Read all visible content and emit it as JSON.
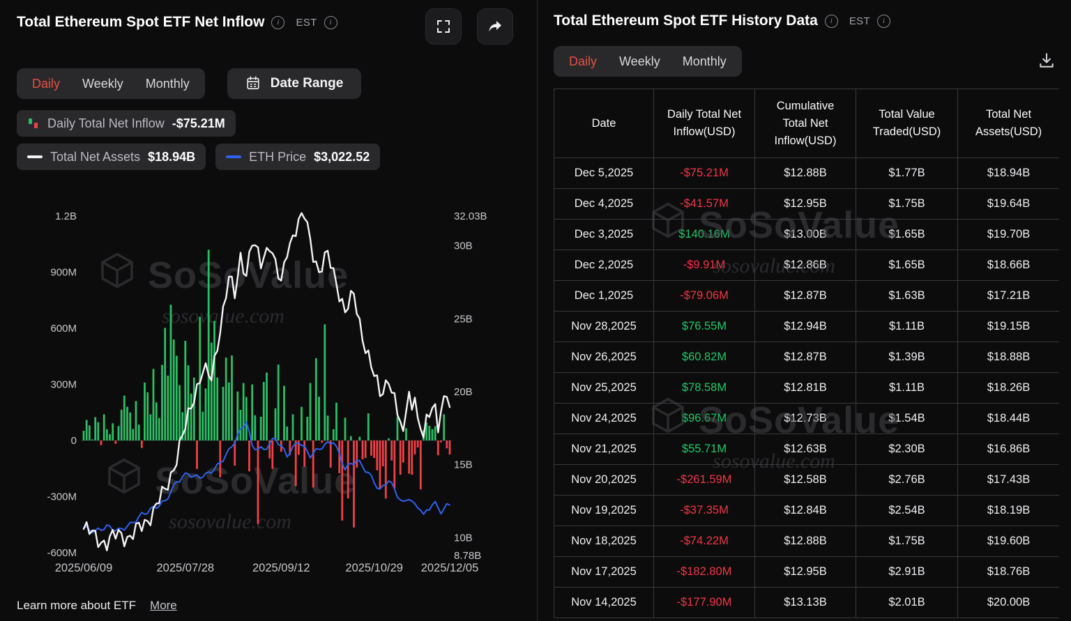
{
  "left_panel": {
    "title": "Total Ethereum Spot ETF Net Inflow",
    "est_label": "EST",
    "tabs": [
      {
        "label": "Daily",
        "active": true
      },
      {
        "label": "Weekly",
        "active": false
      },
      {
        "label": "Monthly",
        "active": false
      }
    ],
    "date_range_label": "Date Range",
    "legend": {
      "inflow_label": "Daily Total Net Inflow",
      "inflow_value": "-$75.21M",
      "assets_label": "Total Net Assets",
      "assets_value": "$18.94B",
      "price_label": "ETH Price",
      "price_value": "$3,022.52"
    },
    "footer": {
      "text": "Learn more about ETF",
      "more": "More"
    }
  },
  "right_panel": {
    "title": "Total Ethereum Spot ETF History Data",
    "est_label": "EST",
    "tabs": [
      {
        "label": "Daily",
        "active": true
      },
      {
        "label": "Weekly",
        "active": false
      },
      {
        "label": "Monthly",
        "active": false
      }
    ],
    "table": {
      "columns": [
        "Date",
        "Daily Total Net Inflow(USD)",
        "Cumulative Total Net Inflow(USD)",
        "Total Value Traded(USD)",
        "Total Net Assets(USD)"
      ],
      "rows": [
        {
          "date": "Dec 5,2025",
          "inflow": "-$75.21M",
          "cumulative": "$12.88B",
          "traded": "$1.77B",
          "assets": "$18.94B"
        },
        {
          "date": "Dec 4,2025",
          "inflow": "-$41.57M",
          "cumulative": "$12.95B",
          "traded": "$1.75B",
          "assets": "$19.64B"
        },
        {
          "date": "Dec 3,2025",
          "inflow": "$140.16M",
          "cumulative": "$13.00B",
          "traded": "$1.65B",
          "assets": "$19.70B"
        },
        {
          "date": "Dec 2,2025",
          "inflow": "-$9.91M",
          "cumulative": "$12.86B",
          "traded": "$1.65B",
          "assets": "$18.66B"
        },
        {
          "date": "Dec 1,2025",
          "inflow": "-$79.06M",
          "cumulative": "$12.87B",
          "traded": "$1.63B",
          "assets": "$17.21B"
        },
        {
          "date": "Nov 28,2025",
          "inflow": "$76.55M",
          "cumulative": "$12.94B",
          "traded": "$1.11B",
          "assets": "$19.15B"
        },
        {
          "date": "Nov 26,2025",
          "inflow": "$60.82M",
          "cumulative": "$12.87B",
          "traded": "$1.39B",
          "assets": "$18.88B"
        },
        {
          "date": "Nov 25,2025",
          "inflow": "$78.58M",
          "cumulative": "$12.81B",
          "traded": "$1.11B",
          "assets": "$18.26B"
        },
        {
          "date": "Nov 24,2025",
          "inflow": "$96.67M",
          "cumulative": "$12.73B",
          "traded": "$1.54B",
          "assets": "$18.44B"
        },
        {
          "date": "Nov 21,2025",
          "inflow": "$55.71M",
          "cumulative": "$12.63B",
          "traded": "$2.30B",
          "assets": "$16.86B"
        },
        {
          "date": "Nov 20,2025",
          "inflow": "-$261.59M",
          "cumulative": "$12.58B",
          "traded": "$2.76B",
          "assets": "$17.43B"
        },
        {
          "date": "Nov 19,2025",
          "inflow": "-$37.35M",
          "cumulative": "$12.84B",
          "traded": "$2.54B",
          "assets": "$18.19B"
        },
        {
          "date": "Nov 18,2025",
          "inflow": "-$74.22M",
          "cumulative": "$12.88B",
          "traded": "$1.75B",
          "assets": "$19.60B"
        },
        {
          "date": "Nov 17,2025",
          "inflow": "-$182.80M",
          "cumulative": "$12.95B",
          "traded": "$2.91B",
          "assets": "$18.76B"
        },
        {
          "date": "Nov 14,2025",
          "inflow": "-$177.90M",
          "cumulative": "$13.13B",
          "traded": "$2.01B",
          "assets": "$20.00B"
        }
      ]
    }
  },
  "watermark": {
    "brand": "SoSoValue",
    "domain": "sosovalue.com"
  },
  "icons": {
    "info_glyph": "i"
  },
  "colors": {
    "accent_tab_red": "#e5513f",
    "negative_red": "#f23645",
    "positive_green": "#1fc96a",
    "eth_blue": "#2f62f0",
    "assets_line": "#f4f4f5",
    "panel_chip": "#29292c",
    "background": "#0c0c0d"
  },
  "chart_data": {
    "type": "bar",
    "title": "Total Ethereum Spot ETF Net Inflow",
    "x_range": [
      "2025/06/09",
      "2025/12/05"
    ],
    "x_tick_labels": [
      "2025/06/09",
      "2025/07/28",
      "2025/09/12",
      "2025/10/29",
      "2025/12/05"
    ],
    "x_tick_index": [
      0,
      35,
      68,
      100,
      126
    ],
    "left_axis_ticks": [
      "1.2B",
      "900M",
      "600M",
      "300M",
      "0",
      "-300M",
      "-600M"
    ],
    "left_axis_tick_values_m": [
      1200,
      900,
      600,
      300,
      0,
      -300,
      -600
    ],
    "left_axis_range_m": [
      -600,
      1200
    ],
    "right_axis_ticks": [
      "32.03B",
      "30B",
      "25B",
      "20B",
      "15B",
      "10B",
      "8.78B"
    ],
    "right_axis_tick_values_b": [
      32.03,
      30,
      25,
      20,
      15,
      10,
      8.78
    ],
    "right_axis_range_b": [
      8.78,
      32.03
    ],
    "grid": false,
    "series": [
      {
        "name": "Daily Total Net Inflow (USD millions, estimated per trading day)",
        "type": "bar",
        "positive_color": "#2dbd64",
        "negative_color": "#ee4145",
        "values": [
          52,
          110,
          81,
          6,
          125,
          98,
          -25,
          140,
          60,
          34,
          92,
          -18,
          77,
          165,
          240,
          180,
          150,
          62,
          211,
          85,
          -40,
          310,
          258,
          140,
          383,
          204,
          120,
          404,
          602,
          347,
          726,
          540,
          453,
          296,
          151,
          533,
          402,
          250,
          336,
          -152,
          661,
          154,
          278,
          1020,
          523,
          639,
          337,
          -197,
          287,
          443,
          310,
          455,
          -135,
          262,
          164,
          307,
          233,
          -165,
          300,
          135,
          -446,
          127,
          313,
          363,
          -96,
          -152,
          172,
          406,
          -60,
          292,
          75,
          -79,
          140,
          -244,
          -76,
          180,
          -141,
          127,
          307,
          -251,
          440,
          234,
          -12,
          621,
          133,
          -145,
          60,
          202,
          -175,
          -428,
          122,
          -310,
          23,
          -465,
          -145,
          20,
          -101,
          -94,
          145,
          -81,
          -93,
          -159,
          -260,
          -138,
          -311,
          12,
          -107,
          -257,
          126,
          -183,
          -118,
          66,
          -177.9,
          -182.8,
          -74.22,
          -37.35,
          -261.59,
          55.71,
          96.67,
          78.58,
          60.82,
          76.55,
          -79.06,
          -9.91,
          140.16,
          -41.57,
          -75.21
        ]
      },
      {
        "name": "Total Net Assets (USD billions, anchors [index,value])",
        "type": "line",
        "axis": "right",
        "color": "#f4f4f5",
        "anchors": [
          [
            0,
            10.6
          ],
          [
            4,
            10.1
          ],
          [
            8,
            9.6
          ],
          [
            12,
            10.3
          ],
          [
            16,
            10.0
          ],
          [
            20,
            10.8
          ],
          [
            24,
            11.8
          ],
          [
            28,
            13.2
          ],
          [
            32,
            15.5
          ],
          [
            35,
            17.5
          ],
          [
            38,
            19.8
          ],
          [
            41,
            21.5
          ],
          [
            44,
            20.8
          ],
          [
            47,
            24.5
          ],
          [
            50,
            27.8
          ],
          [
            52,
            26.5
          ],
          [
            54,
            29.3
          ],
          [
            56,
            28.2
          ],
          [
            58,
            30.2
          ],
          [
            61,
            28.8
          ],
          [
            64,
            30.3
          ],
          [
            66,
            28.6
          ],
          [
            68,
            27.2
          ],
          [
            70,
            29.8
          ],
          [
            73,
            31.2
          ],
          [
            76,
            32.03
          ],
          [
            79,
            29.6
          ],
          [
            81,
            28.2
          ],
          [
            84,
            29.3
          ],
          [
            87,
            27.6
          ],
          [
            90,
            25.4
          ],
          [
            93,
            26.6
          ],
          [
            96,
            23.9
          ],
          [
            99,
            21.6
          ],
          [
            102,
            19.9
          ],
          [
            105,
            21.0
          ],
          [
            108,
            18.4
          ],
          [
            110,
            17.3
          ],
          [
            112,
            20.0
          ],
          [
            113,
            18.76
          ],
          [
            114,
            19.6
          ],
          [
            115,
            18.19
          ],
          [
            116,
            17.43
          ],
          [
            117,
            16.86
          ],
          [
            118,
            18.44
          ],
          [
            119,
            18.26
          ],
          [
            120,
            18.88
          ],
          [
            121,
            19.15
          ],
          [
            122,
            17.21
          ],
          [
            123,
            18.66
          ],
          [
            124,
            19.7
          ],
          [
            125,
            19.64
          ],
          [
            126,
            18.94
          ]
        ]
      },
      {
        "name": "ETH Price (USD, anchors [index,value])",
        "type": "line",
        "axis": "hidden",
        "color": "#2f62f0",
        "scale_range": [
          2300,
          5000
        ],
        "anchors": [
          [
            0,
            2500
          ],
          [
            4,
            2420
          ],
          [
            8,
            2530
          ],
          [
            12,
            2440
          ],
          [
            16,
            2570
          ],
          [
            20,
            2800
          ],
          [
            24,
            2950
          ],
          [
            28,
            3100
          ],
          [
            32,
            3550
          ],
          [
            36,
            3750
          ],
          [
            38,
            3650
          ],
          [
            42,
            3700
          ],
          [
            46,
            3900
          ],
          [
            50,
            4250
          ],
          [
            53,
            4600
          ],
          [
            56,
            4950
          ],
          [
            58,
            4350
          ],
          [
            62,
            4280
          ],
          [
            66,
            4550
          ],
          [
            70,
            4150
          ],
          [
            74,
            4480
          ],
          [
            78,
            4150
          ],
          [
            82,
            4350
          ],
          [
            86,
            4480
          ],
          [
            90,
            3850
          ],
          [
            94,
            4050
          ],
          [
            98,
            3750
          ],
          [
            102,
            3350
          ],
          [
            105,
            3600
          ],
          [
            108,
            3250
          ],
          [
            110,
            3050
          ],
          [
            112,
            3200
          ],
          [
            114,
            3000
          ],
          [
            116,
            2950
          ],
          [
            117,
            2780
          ],
          [
            119,
            2950
          ],
          [
            121,
            3100
          ],
          [
            123,
            2820
          ],
          [
            125,
            3050
          ],
          [
            126,
            3022.52
          ]
        ]
      }
    ]
  }
}
